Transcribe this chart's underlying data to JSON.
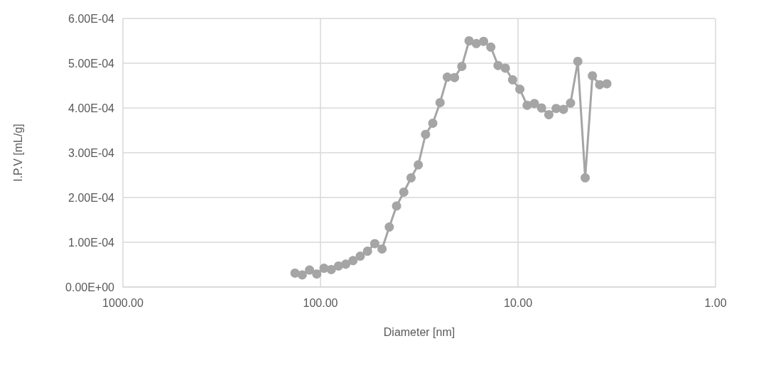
{
  "chart_data": {
    "type": "line",
    "xlabel": "Diameter [nm]",
    "ylabel": "I.P.V [mL/g]",
    "log": "x",
    "grid": true,
    "marker": "circle",
    "line_style": "solid",
    "xlim": [
      1000,
      1
    ],
    "xticks": [
      {
        "value": 1000,
        "label": "1000.00"
      },
      {
        "value": 100,
        "label": "100.00"
      },
      {
        "value": 10,
        "label": "10.00"
      },
      {
        "value": 1,
        "label": "1.00"
      }
    ],
    "ylim": [
      0,
      0.0006
    ],
    "yticks": [
      {
        "value": 0,
        "label": "0.00E+00"
      },
      {
        "value": 0.0001,
        "label": "1.00E-04"
      },
      {
        "value": 0.0002,
        "label": "2.00E-04"
      },
      {
        "value": 0.0003,
        "label": "3.00E-04"
      },
      {
        "value": 0.0004,
        "label": "4.00E-04"
      },
      {
        "value": 0.0005,
        "label": "5.00E-04"
      },
      {
        "value": 0.0006,
        "label": "6.00E-04"
      }
    ],
    "x": [
      134.6,
      123.7,
      113.6,
      104.4,
      95.96,
      88.19,
      81.03,
      74.47,
      68.43,
      62.88,
      57.78,
      53.1,
      48.79,
      44.83,
      41.2,
      37.86,
      34.79,
      31.97,
      29.38,
      27,
      24.81,
      22.8,
      20.95,
      19.25,
      17.69,
      16.26,
      14.94,
      13.73,
      12.62,
      11.59,
      10.65,
      9.79,
      8.99,
      8.26,
      7.6,
      6.98,
      6.41,
      5.89,
      5.42,
      4.98,
      4.57,
      4.2,
      3.86,
      3.55
    ],
    "series": [
      {
        "color": "#a5a5a5",
        "values": [
          3.1e-05,
          2.7e-05,
          3.8e-05,
          2.9e-05,
          4.2e-05,
          3.9e-05,
          4.7e-05,
          5.1e-05,
          5.9e-05,
          6.9e-05,
          8e-05,
          9.7e-05,
          8.5e-05,
          0.000134,
          0.000181,
          0.000212,
          0.000244,
          0.000273,
          0.000341,
          0.000366,
          0.000412,
          0.000469,
          0.000468,
          0.000493,
          0.00055,
          0.000544,
          0.000549,
          0.000536,
          0.000495,
          0.000489,
          0.000463,
          0.000442,
          0.000406,
          0.00041,
          0.0004,
          0.000385,
          0.000399,
          0.000397,
          0.000411,
          0.000504,
          0.000244,
          0.000472,
          0.000452,
          0.000454
        ]
      }
    ]
  }
}
